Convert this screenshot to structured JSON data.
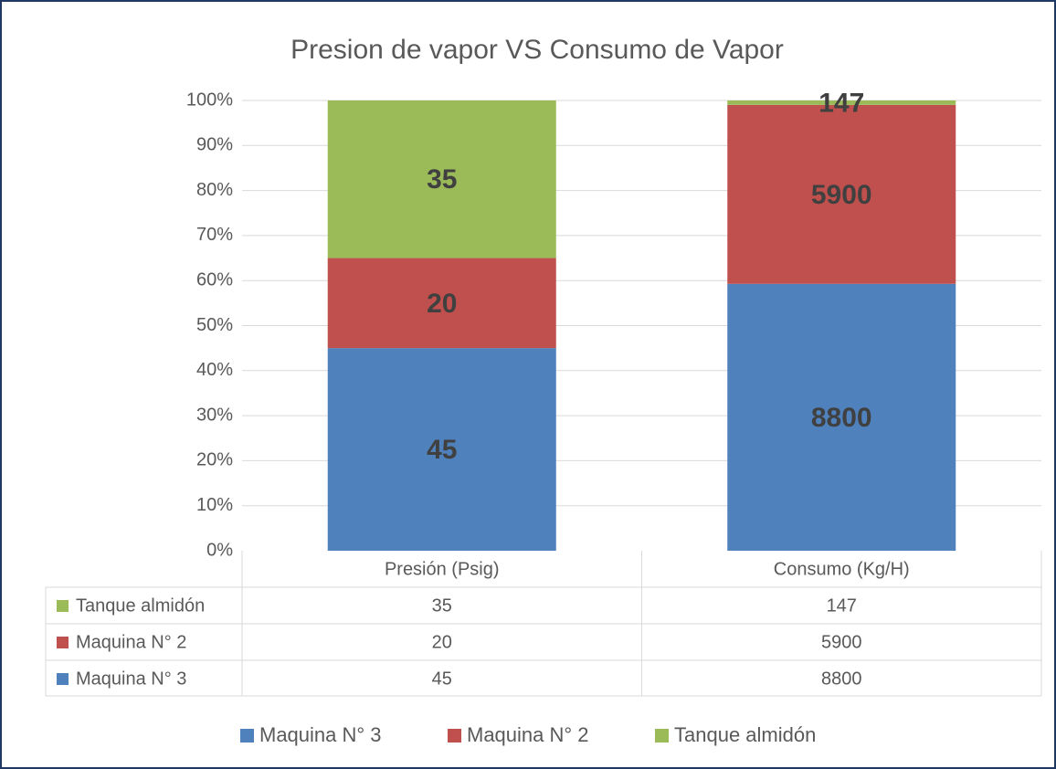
{
  "chart_data": {
    "type": "bar",
    "stacking": "percent",
    "title": "Presion de vapor VS Consumo de Vapor",
    "categories": [
      "Presión (Psig)",
      "Consumo (Kg/H)"
    ],
    "series": [
      {
        "name": "Maquina N° 3",
        "color": "#4f81bd",
        "values": [
          45,
          8800
        ]
      },
      {
        "name": "Maquina N° 2",
        "color": "#c0504d",
        "values": [
          20,
          5900
        ]
      },
      {
        "name": "Tanque almidón",
        "color": "#9bbb59",
        "values": [
          35,
          147
        ]
      }
    ],
    "ylim": [
      0,
      100
    ],
    "yticks": [
      {
        "value": 0,
        "label": "0%"
      },
      {
        "value": 10,
        "label": "10%"
      },
      {
        "value": 20,
        "label": "20%"
      },
      {
        "value": 30,
        "label": "30%"
      },
      {
        "value": 40,
        "label": "40%"
      },
      {
        "value": 50,
        "label": "50%"
      },
      {
        "value": 60,
        "label": "60%"
      },
      {
        "value": 70,
        "label": "70%"
      },
      {
        "value": 80,
        "label": "80%"
      },
      {
        "value": 90,
        "label": "90%"
      },
      {
        "value": 100,
        "label": "100%"
      }
    ],
    "grid": true,
    "data_table": true,
    "legend": "bottom"
  }
}
